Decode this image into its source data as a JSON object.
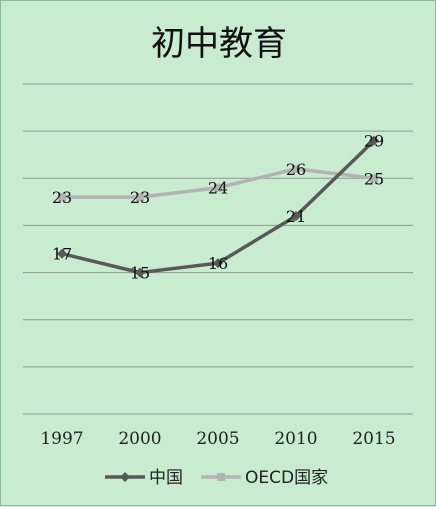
{
  "chart_data": {
    "type": "line",
    "title": "初中教育",
    "xlabel": "",
    "ylabel": "",
    "categories": [
      "1997",
      "2000",
      "2005",
      "2010",
      "2015"
    ],
    "ylim": [
      0,
      35
    ],
    "grid": true,
    "legend": "bottom",
    "series": [
      {
        "name": "中国",
        "values": [
          17,
          15,
          16,
          21,
          29
        ],
        "color": "#595959",
        "marker": "diamond"
      },
      {
        "name": "OECD国家",
        "values": [
          23,
          23,
          24,
          26,
          25
        ],
        "color": "#b3b3b3",
        "marker": "square"
      }
    ]
  }
}
